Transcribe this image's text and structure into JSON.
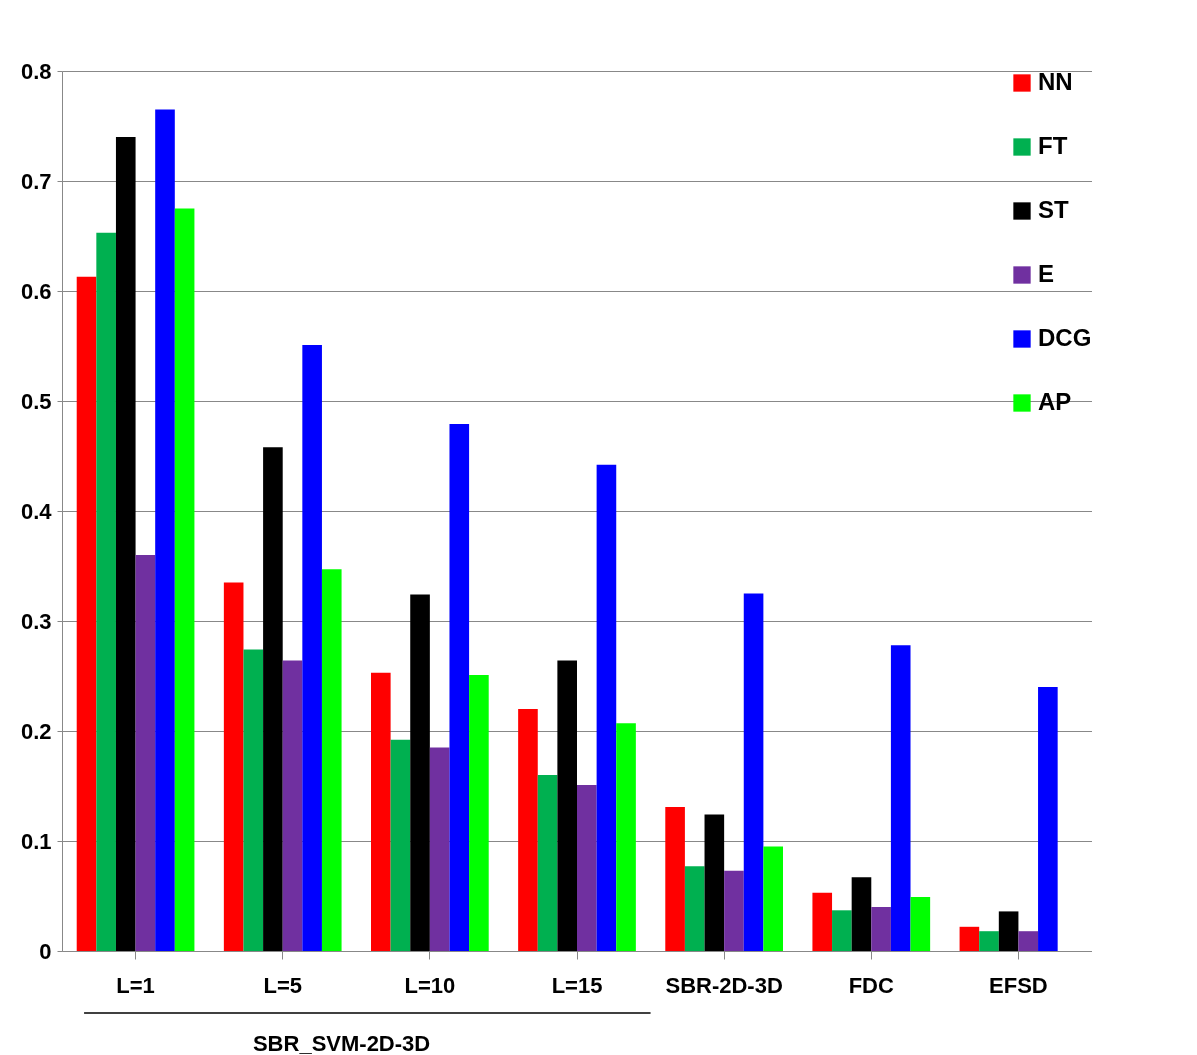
{
  "chart_data": {
    "type": "bar",
    "categories": [
      "L=1",
      "L=5",
      "L=10",
      "L=15",
      "SBR-2D-3D",
      "FDC",
      "EFSD"
    ],
    "series": [
      {
        "name": "NN",
        "color": "#ff0000",
        "values": [
          0.613,
          0.335,
          0.253,
          0.22,
          0.131,
          0.053,
          0.022
        ]
      },
      {
        "name": "FT",
        "color": "#00b050",
        "values": [
          0.653,
          0.274,
          0.192,
          0.16,
          0.077,
          0.037,
          0.018
        ]
      },
      {
        "name": "ST",
        "color": "#000000",
        "values": [
          0.74,
          0.458,
          0.324,
          0.264,
          0.124,
          0.067,
          0.036
        ]
      },
      {
        "name": "E",
        "color": "#7030a0",
        "values": [
          0.36,
          0.264,
          0.185,
          0.151,
          0.073,
          0.04,
          0.018
        ]
      },
      {
        "name": "DCG",
        "color": "#0000ff",
        "values": [
          0.765,
          0.551,
          0.479,
          0.442,
          0.325,
          0.278,
          0.24
        ]
      },
      {
        "name": "AP",
        "color": "#00ff00",
        "values": [
          0.675,
          0.347,
          0.251,
          0.207,
          0.095,
          0.049,
          null
        ]
      }
    ],
    "ylim": [
      0,
      0.8
    ],
    "yticks": [
      0,
      0.1,
      0.2,
      0.3,
      0.4,
      0.5,
      0.6,
      0.7,
      0.8
    ],
    "grid": "y",
    "legend": "top right",
    "annotations": [
      "SBR_SVM-2D-3D"
    ]
  }
}
